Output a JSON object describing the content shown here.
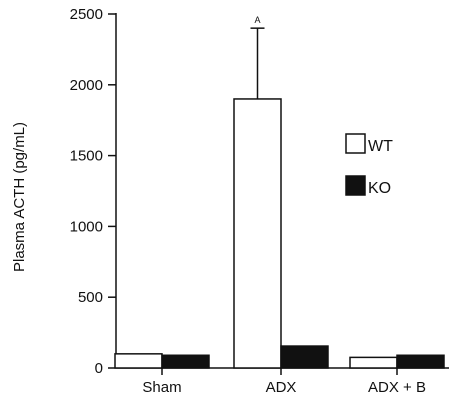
{
  "chart_data": {
    "type": "bar",
    "title": "",
    "xlabel": "",
    "ylabel": "Plasma ACTH (pg/mL)",
    "ylim": [
      0,
      2500
    ],
    "yticks": [
      0,
      500,
      1000,
      1500,
      2000,
      2500
    ],
    "grid": false,
    "legend_position": "right",
    "categories": [
      "Sham",
      "ADX",
      "ADX + B"
    ],
    "series": [
      {
        "name": "WT",
        "color": "#ffffff",
        "values": [
          100,
          1900,
          75
        ],
        "error_upper": [
          null,
          2400,
          null
        ]
      },
      {
        "name": "KO",
        "color": "#111111",
        "values": [
          90,
          155,
          90
        ],
        "error_upper": [
          null,
          null,
          null
        ]
      }
    ],
    "annotations": [
      {
        "category": "ADX",
        "series": "WT",
        "text": "A"
      }
    ]
  }
}
